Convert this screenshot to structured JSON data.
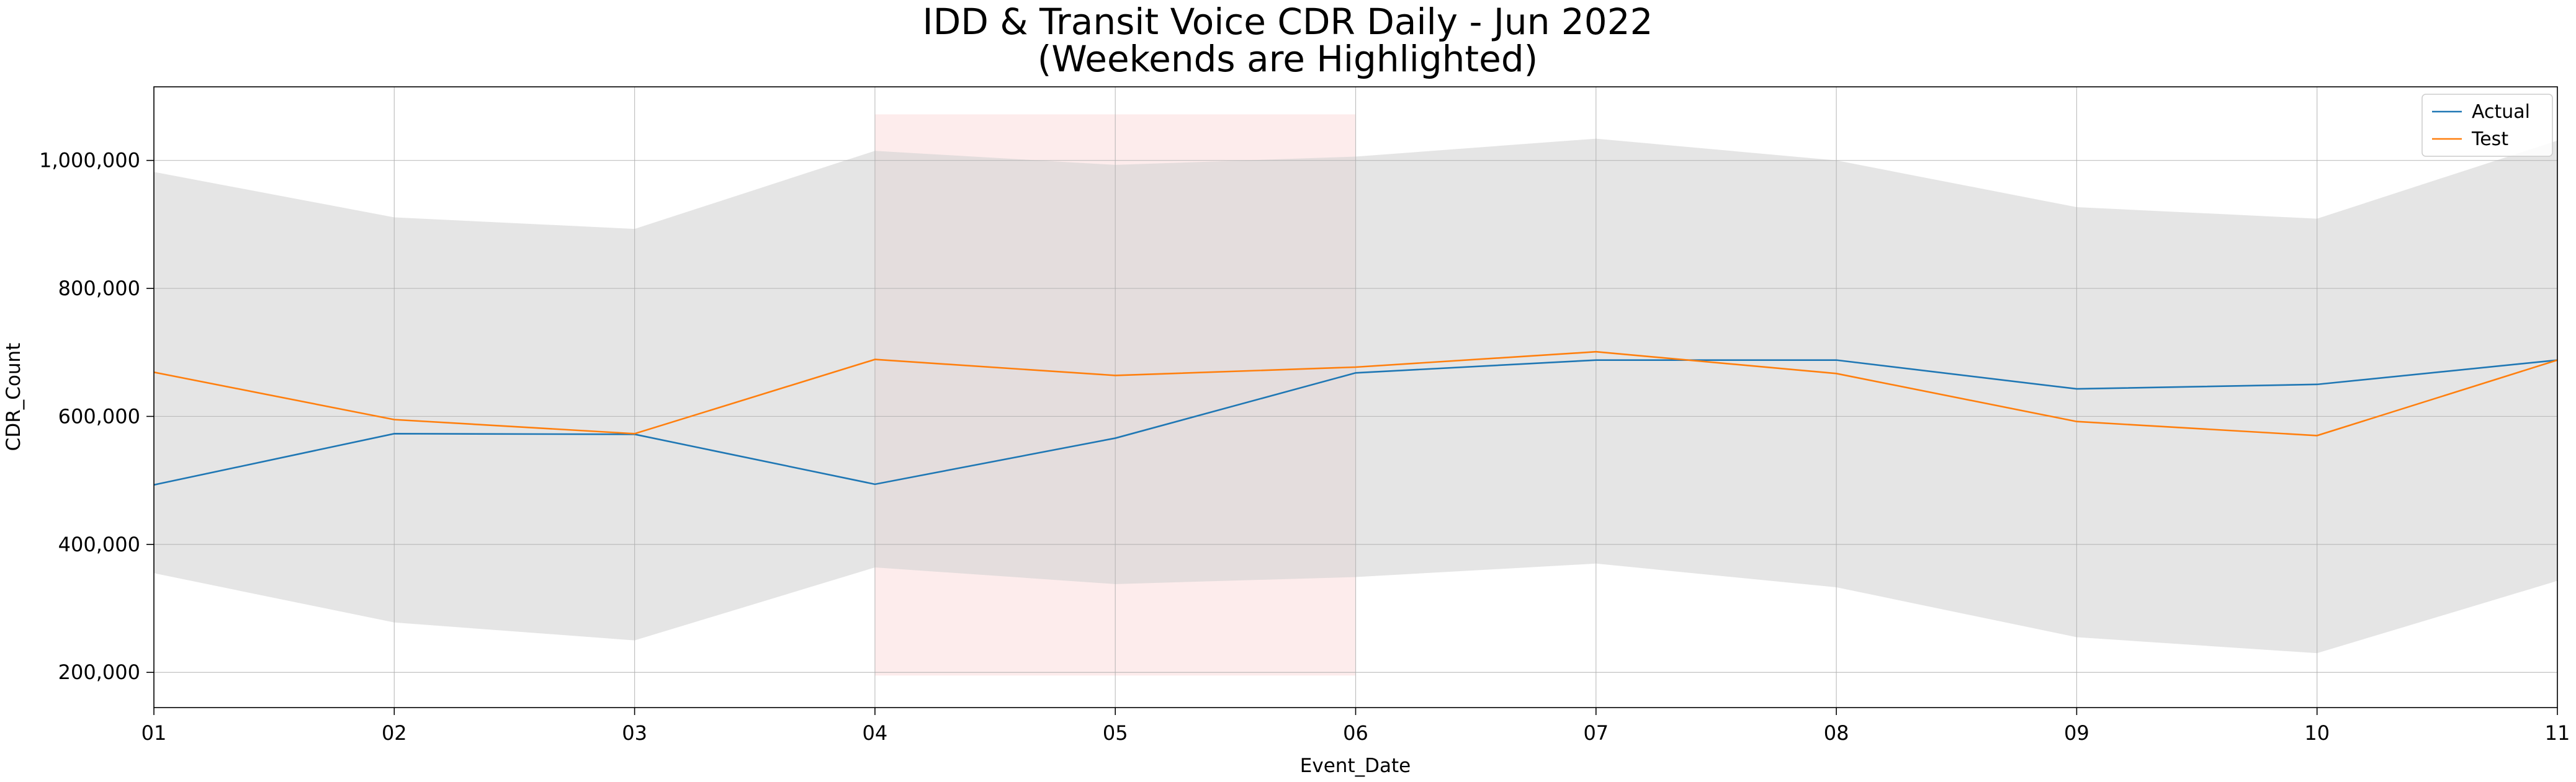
{
  "chart_data": {
    "type": "line",
    "title": "IDD & Transit Voice CDR Daily - Jun 2022",
    "subtitle": "(Weekends are Highlighted)",
    "xlabel": "Event_Date",
    "ylabel": "CDR_Count",
    "x": [
      "01",
      "02",
      "03",
      "04",
      "05",
      "06",
      "07",
      "08",
      "09",
      "10",
      "11"
    ],
    "ylim": [
      145000,
      1115000
    ],
    "yticks": [
      200000,
      400000,
      600000,
      800000,
      1000000
    ],
    "ytick_labels": [
      "200,000",
      "400,000",
      "600,000",
      "800,000",
      "1,000,000"
    ],
    "grid": true,
    "legend_position": "top-right",
    "series": [
      {
        "name": "Actual",
        "color": "#1f77b4",
        "values": [
          493000,
          573000,
          572000,
          494000,
          566000,
          668000,
          688000,
          688000,
          643000,
          650000,
          688000
        ]
      },
      {
        "name": "Test",
        "color": "#ff7f0e",
        "values": [
          669000,
          595000,
          573000,
          689000,
          664000,
          677000,
          701000,
          667000,
          592000,
          570000,
          688000
        ]
      }
    ],
    "confidence_band": {
      "color": "#d3d3d3",
      "upper": [
        982000,
        911000,
        893000,
        1015000,
        993000,
        1006000,
        1034000,
        1000000,
        927000,
        909000,
        1031000
      ],
      "lower": [
        355000,
        278000,
        250000,
        364000,
        338000,
        349000,
        370000,
        333000,
        255000,
        230000,
        343000
      ]
    },
    "weekend_highlight": {
      "color": "#f9d0cf",
      "x_start": "04",
      "x_end": "06",
      "y_range": [
        195000,
        1072000
      ]
    }
  }
}
